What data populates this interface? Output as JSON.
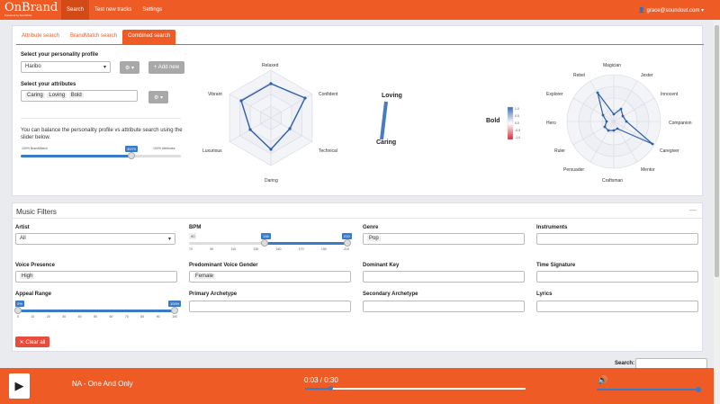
{
  "app": {
    "brand": "OnBrand",
    "brand_sub": "Powered by SoundOut"
  },
  "nav": {
    "search": "Search",
    "test_tracks": "Test new tracks",
    "settings": "Settings",
    "user": "grace@soundout.com ▾"
  },
  "tabs": {
    "attribute": "Attribute search",
    "brandmatch": "BrandMatch search",
    "combined": "Combined search"
  },
  "profile": {
    "label": "Select your personality profile",
    "value": "Haribo",
    "add_label": "+ Add new"
  },
  "attributes": {
    "label": "Select your attributes",
    "chips": [
      "Caring",
      "Loving",
      "Bold"
    ]
  },
  "balance": {
    "text": "You can balance the personality profile vs attribute search using the slider below.",
    "left": "100% BrandMatch",
    "right": "100% Attributes",
    "value_label": "30/70",
    "value": 0.3
  },
  "radar1": {
    "labels": [
      "Relaxed",
      "Confident",
      "Technical",
      "Daring",
      "Luxurious",
      "Vibrant"
    ]
  },
  "attr_chart": {
    "top": "Loving",
    "bottom": "Caring",
    "legend_title": "Bold",
    "scale": [
      "1.0",
      "0.5",
      "0.0",
      "-0.5",
      "-1.0"
    ]
  },
  "radar2": {
    "labels": [
      "Magician",
      "Jester",
      "Innocent",
      "Companion",
      "Caregiver",
      "Mentor",
      "Craftsman",
      "Persuader",
      "Ruler",
      "Hero",
      "Explorer",
      "Rebel"
    ]
  },
  "filters": {
    "title": "Music Filters",
    "artist_label": "Artist",
    "artist_value": "All",
    "bpm_label": "BPM",
    "bpm_min": "90",
    "bpm_low": "136",
    "bpm_high": "210",
    "bpm_low_frac": 0.38,
    "bpm_high_frac": 1.0,
    "bpm_ticks": [
      "90",
      "70",
      "90",
      "110",
      "130",
      "150",
      "170",
      "190",
      "210"
    ],
    "genre_label": "Genre",
    "genre_value": "Pop",
    "instruments_label": "Instruments",
    "voice_presence_label": "Voice Presence",
    "voice_presence_value": "High",
    "voice_gender_label": "Predominant Voice Gender",
    "voice_gender_value": "Female",
    "key_label": "Dominant Key",
    "time_sig_label": "Time Signature",
    "appeal_label": "Appeal Range",
    "appeal_low": "0%",
    "appeal_high": "100%",
    "appeal_ticks": [
      "0",
      "10",
      "20",
      "30",
      "40",
      "50",
      "60",
      "70",
      "80",
      "90",
      "100"
    ],
    "primary_label": "Primary Archetype",
    "secondary_label": "Secondary Archetype",
    "lyrics_label": "Lyrics",
    "clear_label": "✕ Clear all"
  },
  "table": {
    "search_label": "Search:"
  },
  "player": {
    "track": "NA - One And Only",
    "time": "0:03 / 0:30",
    "progress": 0.1,
    "volume": 1.0
  }
}
